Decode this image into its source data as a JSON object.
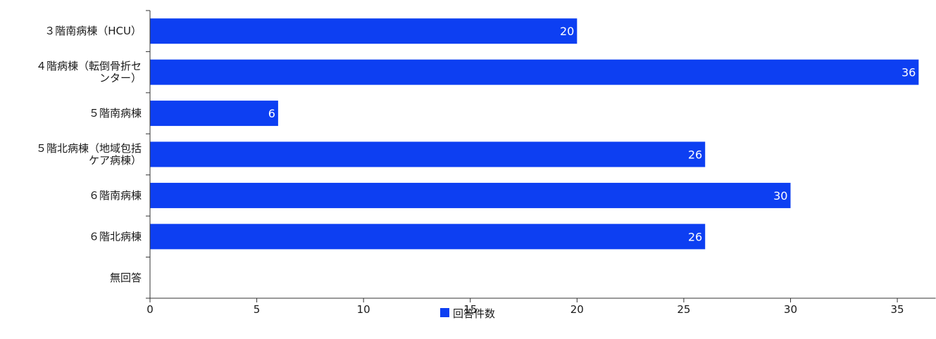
{
  "chart_data": {
    "type": "bar",
    "orientation": "horizontal",
    "categories": [
      [
        "３階南病棟（HCU）"
      ],
      [
        "４階病棟（転倒骨折セ",
        "ンター）"
      ],
      [
        "５階南病棟"
      ],
      [
        "５階北病棟（地域包括",
        "ケア病棟）"
      ],
      [
        "６階南病棟"
      ],
      [
        "６階北病棟"
      ],
      [
        "無回答"
      ]
    ],
    "series": [
      {
        "name": "回答件数",
        "values": [
          20,
          36,
          6,
          26,
          30,
          26,
          0
        ]
      }
    ],
    "data_labels": [
      "20",
      "36",
      "6",
      "26",
      "30",
      "26",
      ""
    ],
    "xlim": [
      0,
      36.4
    ],
    "xticks": [
      0,
      5,
      10,
      15,
      20,
      25,
      30,
      35
    ],
    "title": "",
    "xlabel": "",
    "ylabel": "",
    "grid": false,
    "legend_position": "bottom-center",
    "colors": {
      "bar": "#0d3ff2",
      "axis": "#333333",
      "text": "#1a1a1a",
      "label": "#ffffff"
    }
  }
}
